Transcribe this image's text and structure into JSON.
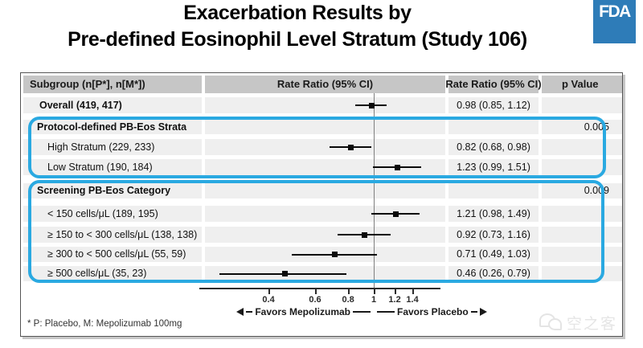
{
  "title": {
    "line1": "Exacerbation Results by",
    "line2": "Pre-defined Eosinophil Level Stratum (Study 106)"
  },
  "logo": {
    "text": "FDA",
    "color": "#2e7cb8"
  },
  "table_headers": {
    "subgroup": "Subgroup (n[P*], n[M*])",
    "plot": "Rate Ratio (95% CI)",
    "value": "Rate Ratio (95% CI)",
    "p": "p Value"
  },
  "chart_data": {
    "type": "scatter",
    "subtype": "forest-plot",
    "scale": "log",
    "reference_line": 1,
    "axis_ticks": [
      0.4,
      0.6,
      0.8,
      1,
      1.2,
      1.4
    ],
    "tick_labels": [
      "0.4",
      "0.6",
      "0.8",
      "1",
      "1.2",
      "1.4"
    ],
    "xlim": [
      0.22,
      1.8
    ],
    "favors_left": "Favors Mepolizumab",
    "favors_right": "Favors Placebo",
    "rows": [
      {
        "label": "Overall (419, 417)",
        "indent": 0,
        "bold": true,
        "group_header": false,
        "est": 0.98,
        "lo": 0.85,
        "hi": 1.12,
        "rr_text": "0.98 (0.85, 1.12)",
        "p": ""
      },
      {
        "label": "Protocol-defined PB-Eos Strata",
        "indent": 1,
        "bold": true,
        "group_header": true,
        "est": null,
        "lo": null,
        "hi": null,
        "rr_text": "",
        "p": "0.005"
      },
      {
        "label": "High Stratum (229, 233)",
        "indent": 2,
        "bold": false,
        "group_header": false,
        "est": 0.82,
        "lo": 0.68,
        "hi": 0.98,
        "rr_text": "0.82 (0.68, 0.98)",
        "p": ""
      },
      {
        "label": "Low Stratum (190, 184)",
        "indent": 2,
        "bold": false,
        "group_header": false,
        "est": 1.23,
        "lo": 0.99,
        "hi": 1.51,
        "rr_text": "1.23 (0.99, 1.51)",
        "p": ""
      },
      {
        "label": "Screening PB-Eos Category",
        "indent": 1,
        "bold": true,
        "group_header": true,
        "est": null,
        "lo": null,
        "hi": null,
        "rr_text": "",
        "p": "0.009"
      },
      {
        "label": "< 150 cells/μL (189, 195)",
        "indent": 2,
        "bold": false,
        "group_header": false,
        "est": 1.21,
        "lo": 0.98,
        "hi": 1.49,
        "rr_text": "1.21 (0.98, 1.49)",
        "p": ""
      },
      {
        "label": "≥ 150 to < 300 cells/μL (138, 138)",
        "indent": 2,
        "bold": false,
        "group_header": false,
        "est": 0.92,
        "lo": 0.73,
        "hi": 1.16,
        "rr_text": "0.92 (0.73, 1.16)",
        "p": ""
      },
      {
        "label": "≥ 300 to < 500 cells/μL (55, 59)",
        "indent": 2,
        "bold": false,
        "group_header": false,
        "est": 0.71,
        "lo": 0.49,
        "hi": 1.03,
        "rr_text": "0.71 (0.49, 1.03)",
        "p": ""
      },
      {
        "label": "≥ 500 cells/μL (35, 23)",
        "indent": 2,
        "bold": false,
        "group_header": false,
        "est": 0.46,
        "lo": 0.26,
        "hi": 0.79,
        "rr_text": "0.46 (0.26, 0.79)",
        "p": ""
      }
    ]
  },
  "footnote": "* P: Placebo, M: Mepolizumab 100mg",
  "watermark": {
    "icon": "wechat-icon",
    "text": "空之客"
  }
}
